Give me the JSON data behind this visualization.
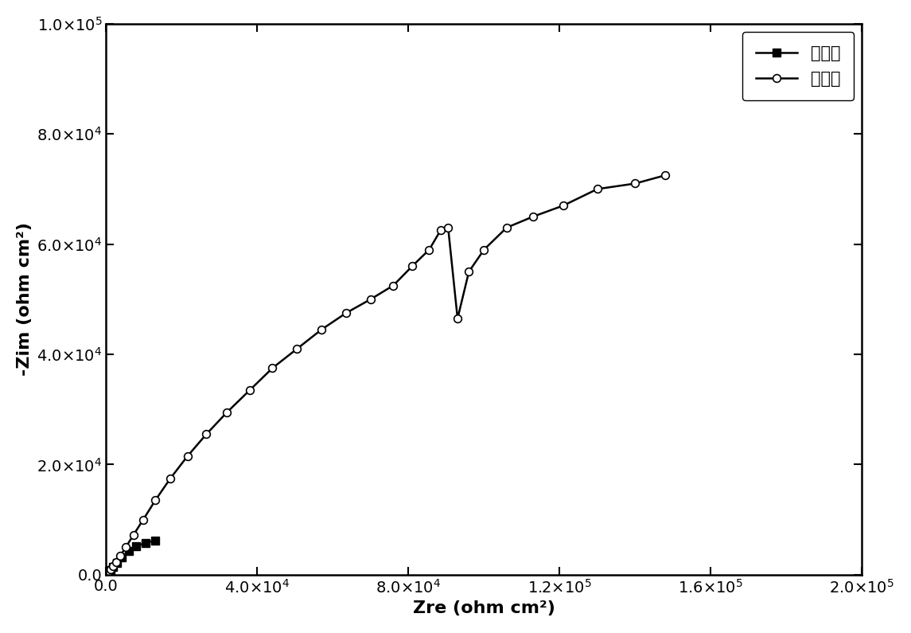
{
  "before_x": [
    100,
    200,
    400,
    700,
    1100,
    1800,
    2800,
    4200,
    6000,
    8000,
    10500,
    13000
  ],
  "before_y": [
    50,
    100,
    200,
    450,
    800,
    1400,
    2200,
    3200,
    4300,
    5200,
    5800,
    6200
  ],
  "after_x": [
    100,
    200,
    350,
    550,
    800,
    1200,
    1800,
    2600,
    3700,
    5200,
    7200,
    9800,
    13000,
    17000,
    21500,
    26500,
    32000,
    38000,
    44000,
    50500,
    57000,
    63500,
    70000,
    76000,
    81000,
    85500,
    88500,
    90500,
    93000,
    96000,
    100000,
    106000,
    113000,
    121000,
    130000,
    140000,
    148000
  ],
  "after_y": [
    30,
    70,
    150,
    300,
    550,
    950,
    1500,
    2300,
    3400,
    5000,
    7200,
    10000,
    13500,
    17500,
    21500,
    25500,
    29500,
    33500,
    37500,
    41000,
    44500,
    47500,
    50000,
    52500,
    56000,
    59000,
    62500,
    63000,
    46500,
    55000,
    59000,
    63000,
    65000,
    67000,
    70000,
    71000,
    72500
  ],
  "xlabel": "Zre (ohm cm²)",
  "ylabel": "-Zim (ohm cm²)",
  "legend_before": "修复前",
  "legend_after": "修复后",
  "xlim": [
    0,
    200000
  ],
  "ylim": [
    0,
    100000
  ],
  "xticks": [
    0,
    40000,
    80000,
    120000,
    160000,
    200000
  ],
  "yticks": [
    0,
    20000,
    40000,
    60000,
    80000,
    100000
  ],
  "color": "#000000",
  "background_color": "#ffffff"
}
